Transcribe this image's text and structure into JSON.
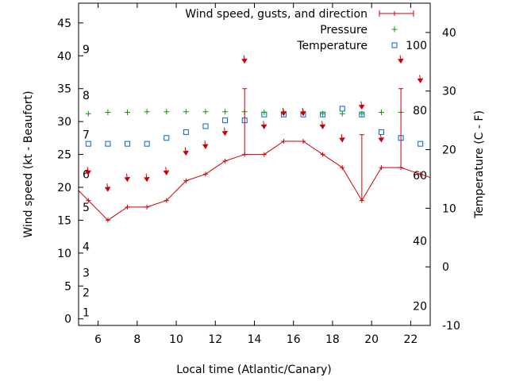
{
  "chart_data": {
    "type": "line",
    "xlabel": "Local time (Atlantic/Canary)",
    "ylabel": "Wind speed (kt - Beaufort)",
    "y2label": "Temperature (C - F)",
    "xlim": [
      5,
      23
    ],
    "ylim": [
      -1,
      48
    ],
    "y2lim": [
      -10,
      45
    ],
    "grid": false,
    "legend_position": "top-right",
    "x_ticks": [
      6,
      8,
      10,
      12,
      14,
      16,
      18,
      20,
      22
    ],
    "y_ticks": [
      0,
      5,
      10,
      15,
      20,
      25,
      30,
      35,
      40,
      45
    ],
    "y2_ticks": [
      -10,
      0,
      10,
      20,
      30,
      40
    ],
    "beaufort_labels": [
      {
        "label": "1",
        "y": 1
      },
      {
        "label": "2",
        "y": 4
      },
      {
        "label": "3",
        "y": 7
      },
      {
        "label": "4",
        "y": 11
      },
      {
        "label": "5",
        "y": 17
      },
      {
        "label": "6",
        "y": 22
      },
      {
        "label": "7",
        "y": 28
      },
      {
        "label": "8",
        "y": 34
      },
      {
        "label": "9",
        "y": 41
      }
    ],
    "fahrenheit_labels": [
      {
        "label": "20",
        "y2": -6.7
      },
      {
        "label": "40",
        "y2": 4.4
      },
      {
        "label": "60",
        "y2": 15.6
      },
      {
        "label": "80",
        "y2": 26.7
      },
      {
        "label": "100",
        "y2": 37.8
      }
    ],
    "series": [
      {
        "name": "Wind speed, gusts, and direction",
        "color": "#cc0000",
        "x": [
          5.5,
          6.5,
          7.5,
          8.5,
          9.5,
          10.5,
          11.5,
          12.5,
          13.5,
          14.5,
          15.5,
          16.5,
          17.5,
          18.5,
          19.5,
          20.5,
          21.5,
          22.5
        ],
        "y": [
          18,
          15,
          17,
          17,
          18,
          21,
          22,
          24,
          25,
          25,
          27,
          27,
          25,
          23,
          18,
          23,
          23,
          22
        ],
        "gusts": [
          null,
          null,
          null,
          null,
          null,
          null,
          null,
          null,
          35,
          null,
          null,
          null,
          null,
          null,
          28,
          null,
          35,
          null
        ],
        "direction_y": [
          22,
          19.5,
          21,
          21,
          22,
          25,
          26,
          28,
          39,
          29,
          31,
          31,
          29,
          27,
          32,
          27,
          39,
          36
        ],
        "leading_y": 19.5,
        "trailing_y": 21.5
      },
      {
        "name": "Pressure",
        "color": "#00a000",
        "x": [
          5.5,
          6.5,
          7.5,
          8.5,
          9.5,
          10.5,
          11.5,
          12.5,
          13.5,
          14.5,
          15.5,
          16.5,
          17.5,
          18.5,
          19.5,
          20.5,
          21.5
        ],
        "y": [
          31.2,
          31.4,
          31.4,
          31.5,
          31.5,
          31.5,
          31.5,
          31.5,
          31.5,
          31.4,
          31.4,
          31.4,
          31.2,
          31.2,
          31.2,
          31.4,
          31.4
        ]
      },
      {
        "name": "Temperature",
        "color": "#0066cc",
        "x": [
          5.5,
          6.5,
          7.5,
          8.5,
          9.5,
          10.5,
          11.5,
          12.5,
          13.5,
          14.5,
          15.5,
          16.5,
          17.5,
          18.5,
          19.5,
          20.5,
          21.5,
          22.5
        ],
        "y2": [
          21,
          21,
          21,
          21,
          22,
          23,
          24,
          25,
          25,
          26,
          26,
          26,
          26,
          27,
          26,
          23,
          22,
          21
        ]
      }
    ]
  }
}
